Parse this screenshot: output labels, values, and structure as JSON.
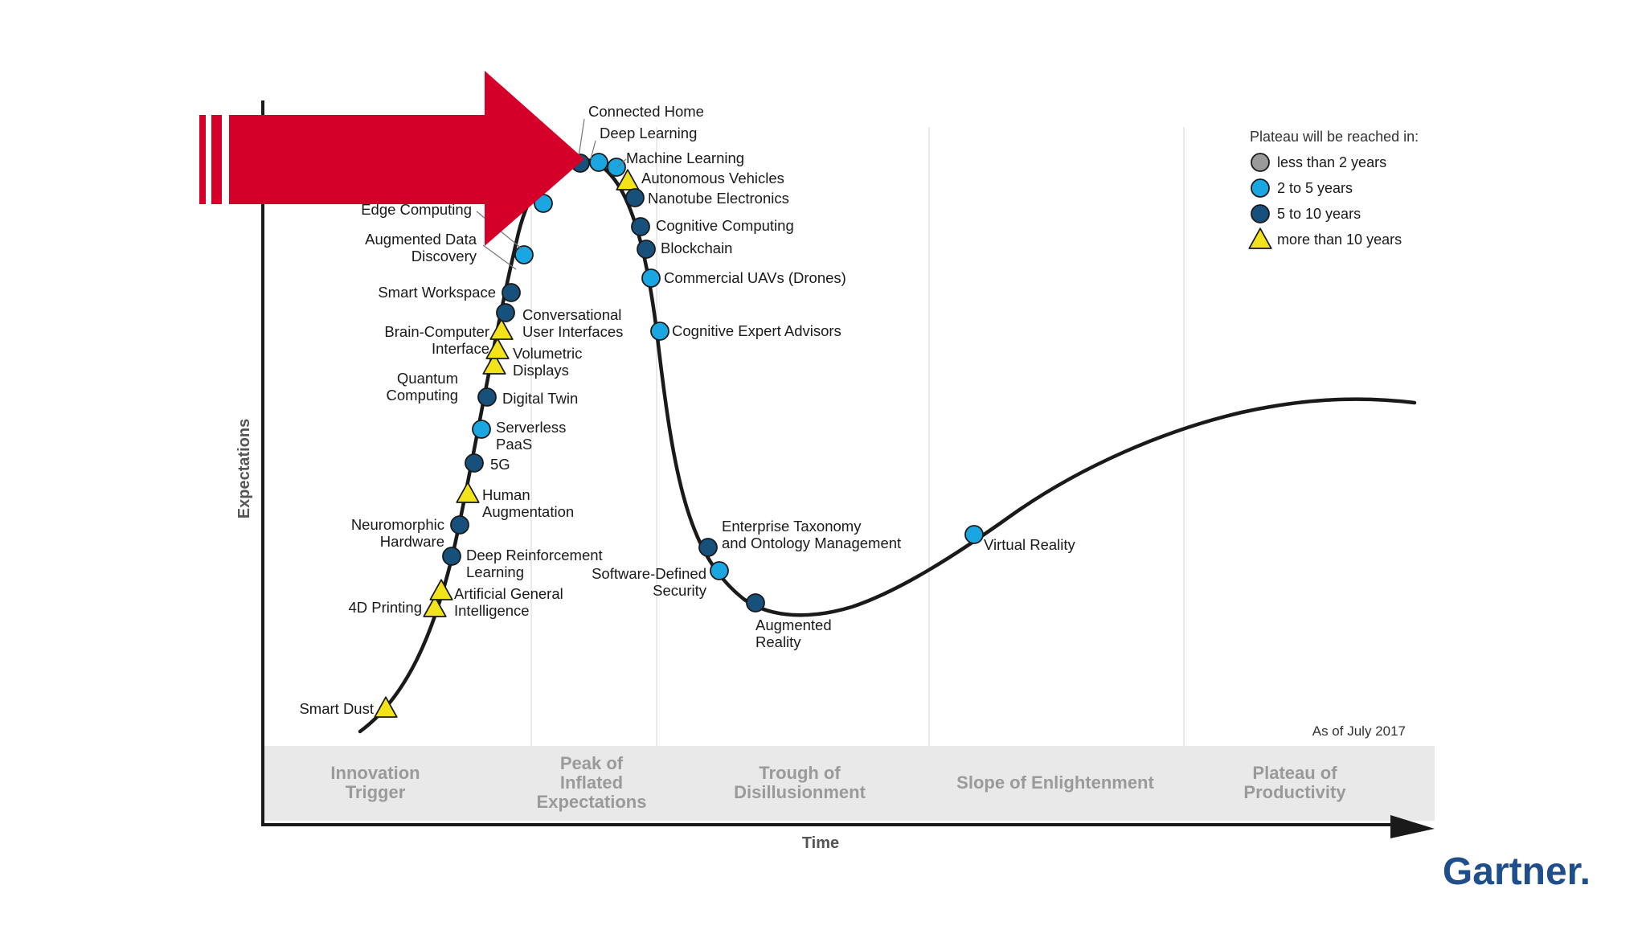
{
  "chart_data": {
    "type": "scatter",
    "title": "",
    "xlabel": "Time",
    "ylabel": "Expectations",
    "as_of": "As of July 2017",
    "brand": "Gartner.",
    "phases": [
      "Innovation\nTrigger",
      "Peak of\nInflated\nExpectations",
      "Trough of\nDisillusionment",
      "Slope of Enlightenment",
      "Plateau of\nProductivity"
    ],
    "legend": {
      "title": "Plateau will be reached in:",
      "entries": [
        {
          "key": "lt2",
          "label": "less than 2 years",
          "color": "#9a9a9a",
          "shape": "circle"
        },
        {
          "key": "2to5",
          "label": "2 to 5 years",
          "color": "#1aa6e0",
          "shape": "circle"
        },
        {
          "key": "5to10",
          "label": "5 to 10 years",
          "color": "#17507a",
          "shape": "circle"
        },
        {
          "key": "gt10",
          "label": "more than 10 years",
          "color": "#f2e31b",
          "shape": "triangle"
        }
      ]
    },
    "technologies": [
      {
        "label": "Smart Dust",
        "category": "gt10"
      },
      {
        "label": "4D Printing",
        "category": "gt10"
      },
      {
        "label": "Artificial General\nIntelligence",
        "category": "gt10"
      },
      {
        "label": "Deep Reinforcement\nLearning",
        "category": "5to10"
      },
      {
        "label": "Neuromorphic\nHardware",
        "category": "5to10"
      },
      {
        "label": "Human\nAugmentation",
        "category": "gt10"
      },
      {
        "label": "5G",
        "category": "5to10"
      },
      {
        "label": "Serverless\nPaaS",
        "category": "2to5"
      },
      {
        "label": "Digital Twin",
        "category": "5to10"
      },
      {
        "label": "Quantum\nComputing",
        "category": "gt10"
      },
      {
        "label": "Volumetric\nDisplays",
        "category": "gt10"
      },
      {
        "label": "Brain-Computer\nInterface",
        "category": "gt10"
      },
      {
        "label": "Conversational\nUser Interfaces",
        "category": "5to10"
      },
      {
        "label": "Smart Workspace",
        "category": "5to10"
      },
      {
        "label": "Augmented Data\nDiscovery",
        "category": "2to5"
      },
      {
        "label": "Edge Computing",
        "category": "2to5"
      },
      {
        "label": "Connected Home",
        "category": "5to10"
      },
      {
        "label": "Deep Learning",
        "category": "2to5"
      },
      {
        "label": "Machine Learning",
        "category": "2to5"
      },
      {
        "label": "Autonomous Vehicles",
        "category": "gt10"
      },
      {
        "label": "Nanotube Electronics",
        "category": "5to10"
      },
      {
        "label": "Cognitive Computing",
        "category": "5to10"
      },
      {
        "label": "Blockchain",
        "category": "5to10"
      },
      {
        "label": "Commercial UAVs (Drones)",
        "category": "2to5"
      },
      {
        "label": "Cognitive Expert Advisors",
        "category": "2to5"
      },
      {
        "label": "Enterprise Taxonomy\nand Ontology Management",
        "category": "5to10"
      },
      {
        "label": "Software-Defined\nSecurity",
        "category": "2to5"
      },
      {
        "label": "Augmented\nReality",
        "category": "5to10"
      },
      {
        "label": "Virtual Reality",
        "category": "2to5"
      }
    ]
  },
  "overlay": {
    "arrow_color": "#d40029"
  }
}
